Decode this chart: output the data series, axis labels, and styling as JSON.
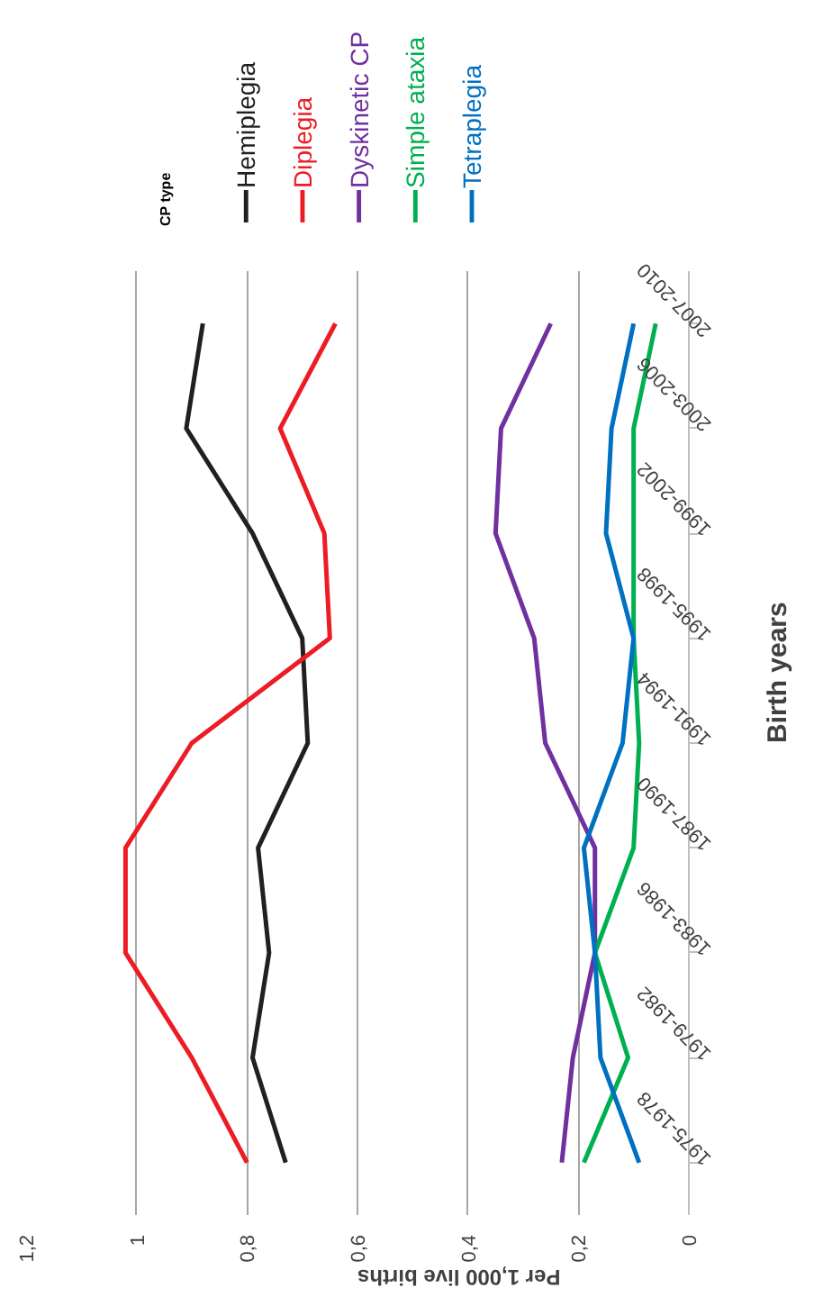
{
  "chart_data": {
    "type": "line",
    "orientation": "horizontal",
    "xlabel": "Per 1,000 live births",
    "ylabel": "Birth years",
    "legend_title": "CP type",
    "categories": [
      "2007-2010",
      "2003-2006",
      "1999-2002",
      "1995-1998",
      "1991-1994",
      "1987-1990",
      "1983-1986",
      "1979-1982",
      "1975-1978"
    ],
    "series": [
      {
        "name": "Hemiplegia",
        "color": "#231f20",
        "values": [
          0.88,
          0.91,
          0.79,
          0.7,
          0.69,
          0.78,
          0.76,
          0.79,
          0.73
        ]
      },
      {
        "name": "Diplegia",
        "color": "#ed1c24",
        "values": [
          0.64,
          0.74,
          0.66,
          0.65,
          0.9,
          1.02,
          1.02,
          0.9,
          0.8
        ]
      },
      {
        "name": "Dyskinetic CP",
        "color": "#7030a0",
        "values": [
          0.25,
          0.34,
          0.35,
          0.28,
          0.26,
          0.17,
          0.17,
          0.21,
          0.23
        ]
      },
      {
        "name": "Simple ataxia",
        "color": "#00b050",
        "values": [
          0.06,
          0.1,
          0.1,
          0.1,
          0.09,
          0.1,
          0.17,
          0.11,
          0.19
        ]
      },
      {
        "name": "Tetraplegia",
        "color": "#0070c0",
        "values": [
          0.1,
          0.14,
          0.15,
          0.1,
          0.12,
          0.19,
          0.17,
          0.16,
          0.09
        ]
      }
    ],
    "xlim": [
      1.2,
      0
    ],
    "xticks": [
      0,
      {
        "value": 0.2,
        "label": "0,2"
      },
      {
        "value": 0.4,
        "label": "0,4"
      },
      {
        "value": 0.6,
        "label": "0,6"
      },
      {
        "value": 0.8,
        "label": "0,8"
      },
      1,
      {
        "value": 1.2,
        "label": "1,2"
      }
    ],
    "grid": "x",
    "legend": "top",
    "line_style": "solid",
    "marker": "none"
  }
}
